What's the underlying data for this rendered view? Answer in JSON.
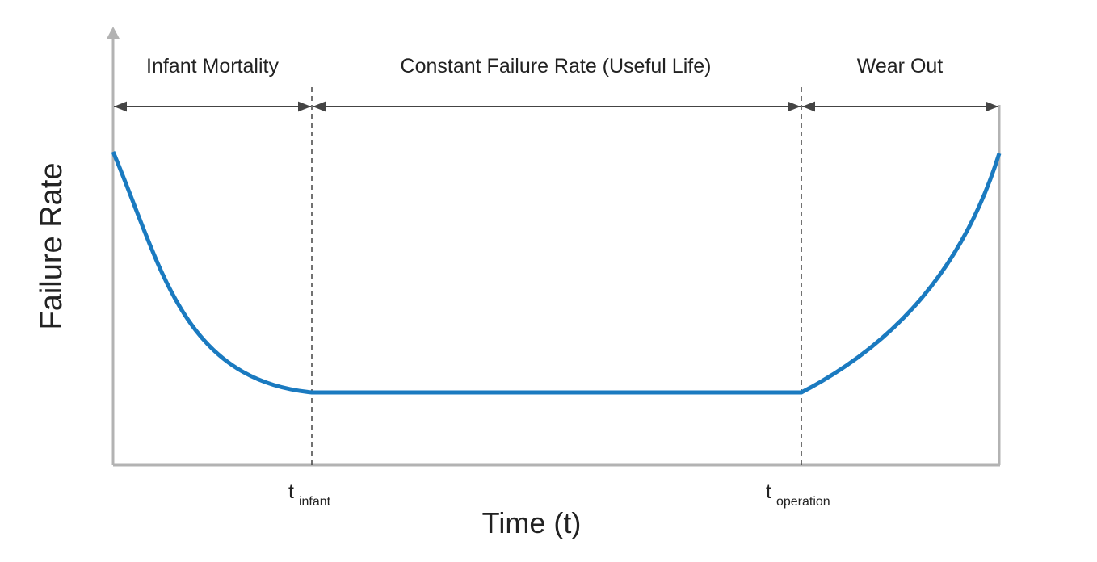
{
  "regions": [
    {
      "label": "Infant Mortality"
    },
    {
      "label": "Constant Failure Rate (Useful Life)"
    },
    {
      "label": "Wear Out"
    }
  ],
  "y_axis": {
    "label": "Failure Rate"
  },
  "x_axis": {
    "label": "Time (t)"
  },
  "markers": [
    {
      "symbol": "t",
      "subscript": "infant"
    },
    {
      "symbol": "t",
      "subscript": "operation"
    }
  ]
}
